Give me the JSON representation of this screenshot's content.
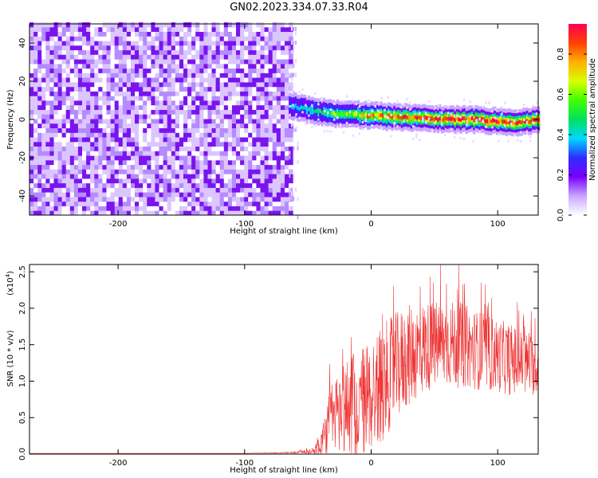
{
  "title": "GN02.2023.334.07.33.R04",
  "chart_data": [
    {
      "type": "heatmap",
      "xlabel": "Height of straight line (km)",
      "ylabel": "Frequency (Hz)",
      "xlim": [
        -270,
        132
      ],
      "ylim": [
        -50,
        50
      ],
      "xticks": [
        -200,
        -100,
        0,
        100
      ],
      "yticks": [
        -40,
        -20,
        0,
        20,
        40
      ],
      "colorbar": {
        "label": "Normalized spectral amplitude",
        "range": [
          0,
          0.95
        ],
        "ticks": [
          0.0,
          0.2,
          0.4,
          0.6,
          0.8
        ],
        "colormap": [
          "#ffffff",
          "#c9a6ff",
          "#7a00ff",
          "#2d2dff",
          "#00d8ff",
          "#00e060",
          "#40ff00",
          "#d8ff00",
          "#ffb000",
          "#ff4000",
          "#ff0055"
        ]
      },
      "noise_region": {
        "x": [
          -270,
          -65
        ],
        "freq": [
          -50,
          50
        ],
        "amplitude": [
          0.02,
          0.15
        ]
      },
      "signal_band": {
        "x": [
          -65,
          132
        ],
        "center_freq": [
          [
            -62,
            7
          ],
          [
            -50,
            5
          ],
          [
            -30,
            3
          ],
          [
            0,
            2
          ],
          [
            30,
            1
          ],
          [
            60,
            0
          ],
          [
            80,
            0
          ],
          [
            100,
            -1
          ],
          [
            110,
            -2
          ],
          [
            132,
            0
          ]
        ],
        "amplitude": [
          [
            -62,
            0.35
          ],
          [
            -40,
            0.5
          ],
          [
            -20,
            0.6
          ],
          [
            0,
            0.75
          ],
          [
            40,
            0.9
          ],
          [
            80,
            0.92
          ],
          [
            132,
            0.9
          ]
        ]
      }
    },
    {
      "type": "line",
      "xlabel": "Height of straight line (km)",
      "ylabel": "SNR (10 * v/v)",
      "y_multiplier": "(x10",
      "y_multiplier_exp": "4",
      "y_multiplier_close": ")",
      "xlim": [
        -270,
        132
      ],
      "ylim": [
        0,
        2.6
      ],
      "xticks": [
        -200,
        -100,
        0,
        100
      ],
      "yticks": [
        "0.0",
        "0.5",
        "1.0",
        "1.5",
        "2.0",
        "2.5"
      ],
      "color": "#ee3333",
      "series": [
        {
          "x": [
            -270,
            -200,
            -100,
            -60,
            -45,
            -38,
            -32,
            -25,
            -20,
            -10,
            0,
            10,
            20,
            30,
            40,
            50,
            60,
            70,
            80,
            90,
            100,
            110,
            120,
            132
          ],
          "y": [
            0.01,
            0.01,
            0.01,
            0.02,
            0.05,
            0.2,
            0.5,
            0.6,
            0.65,
            0.7,
            0.8,
            1.0,
            1.2,
            1.35,
            1.45,
            1.5,
            1.52,
            1.5,
            1.45,
            1.4,
            1.35,
            1.3,
            1.25,
            1.2
          ],
          "spread": [
            0,
            0,
            0,
            0.01,
            0.05,
            0.25,
            0.45,
            0.6,
            0.7,
            0.75,
            0.8,
            0.8,
            0.75,
            0.7,
            0.65,
            0.6,
            0.6,
            0.6,
            0.55,
            0.55,
            0.5,
            0.5,
            0.45,
            0.4
          ]
        }
      ]
    }
  ]
}
